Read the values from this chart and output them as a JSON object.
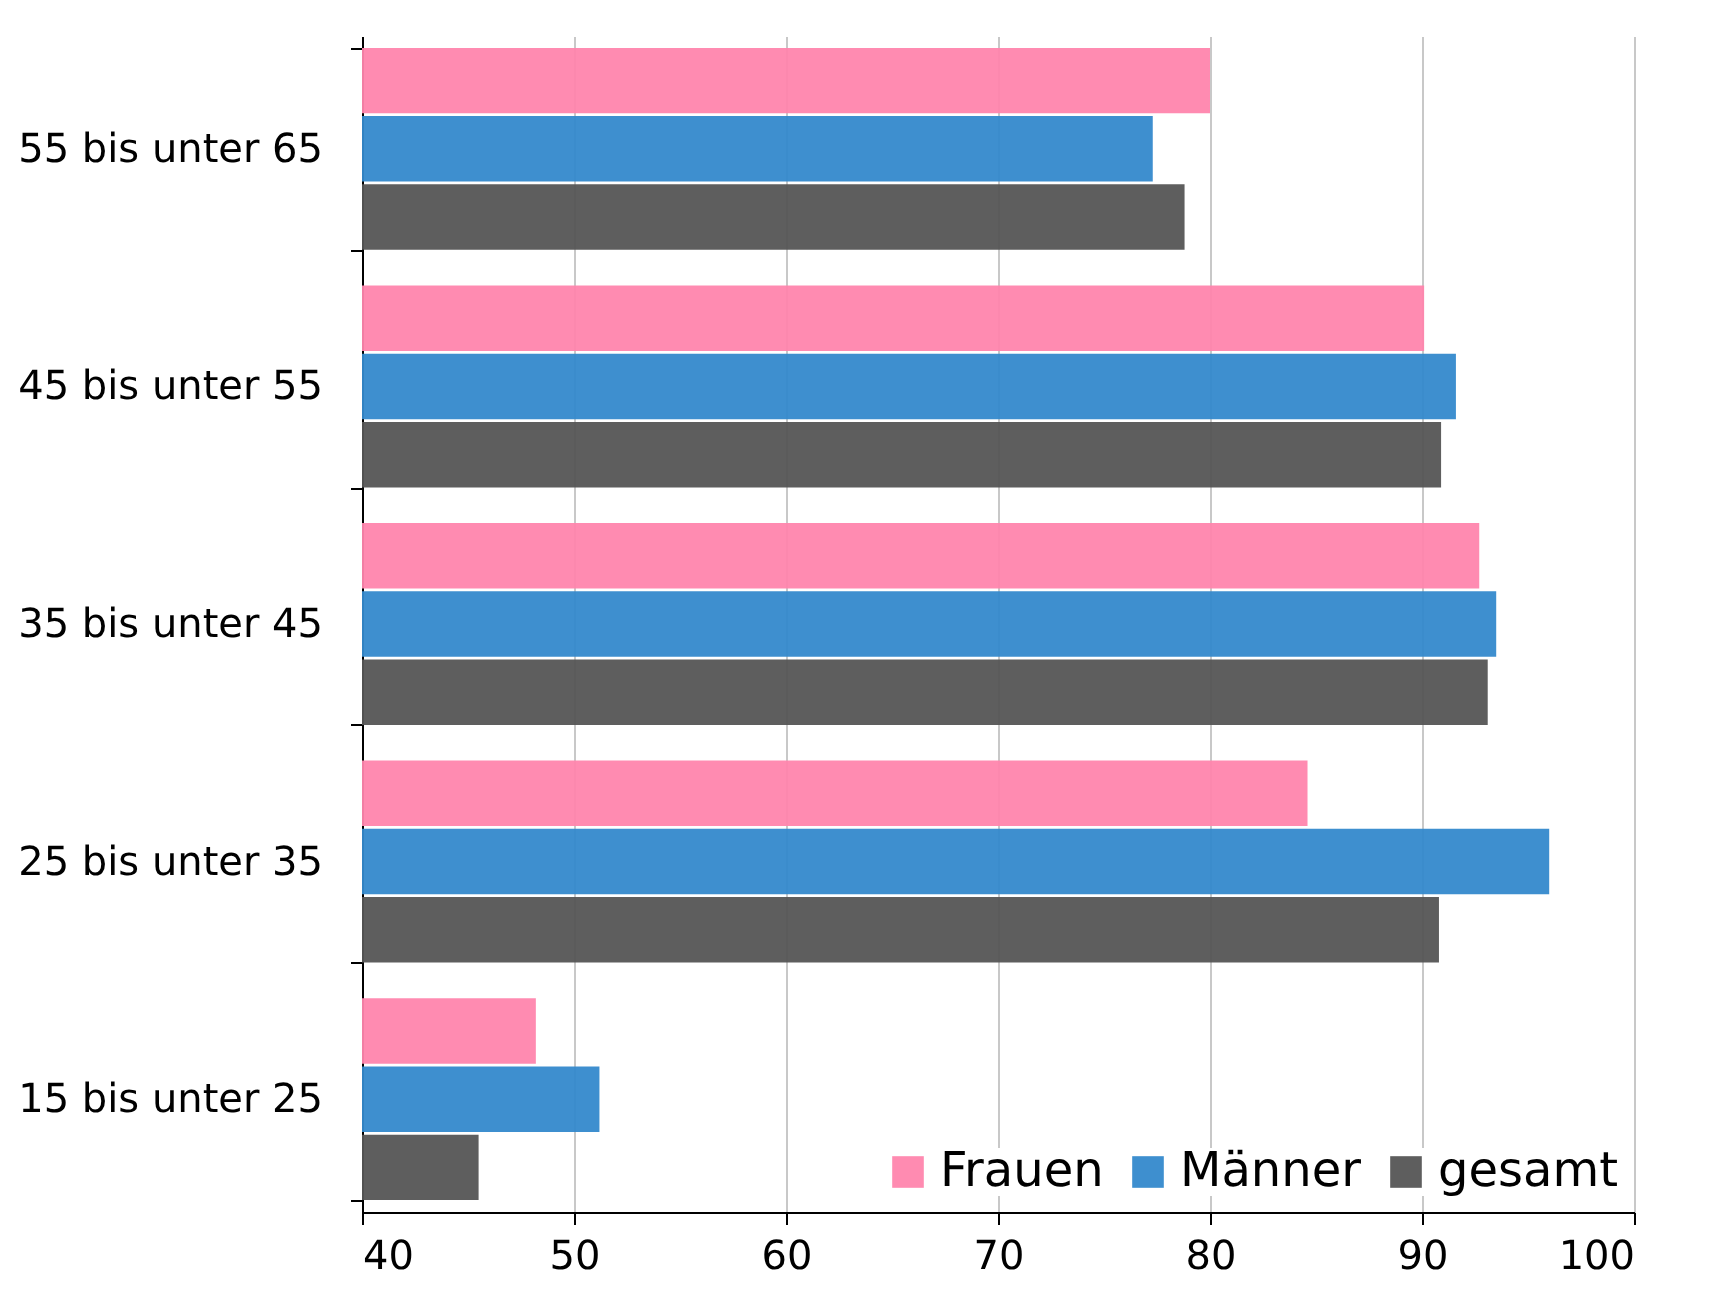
{
  "chart_data": {
    "type": "bar",
    "orientation": "horizontal",
    "categories": [
      "55 bis unter 65",
      "45 bis unter 55",
      "35 bis unter 45",
      "25 bis unter 35",
      "15 bis unter 25"
    ],
    "series": [
      {
        "name": "Frauen",
        "color": "#ff85ad",
        "values": [
          80.0,
          90.1,
          92.7,
          84.6,
          48.2
        ]
      },
      {
        "name": "Männer",
        "color": "#3489cc",
        "values": [
          77.3,
          91.6,
          93.5,
          96.0,
          51.2
        ]
      },
      {
        "name": "gesamt",
        "color": "#555555",
        "values": [
          78.8,
          90.9,
          93.1,
          90.8,
          45.5
        ]
      }
    ],
    "xlim": [
      40,
      100
    ],
    "xticks": [
      40,
      50,
      60,
      70,
      80,
      90,
      100
    ],
    "grid": "x",
    "legend": "bottom right"
  }
}
